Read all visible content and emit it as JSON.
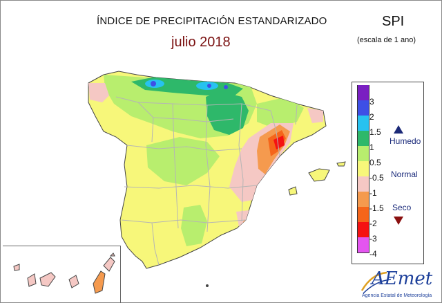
{
  "header": {
    "title": "ÍNDICE DE PRECIPITACIÓN ESTANDARIZADO",
    "subtitle": "julio 2018",
    "index": "SPI",
    "scale_note": "(escala de 1 ano)"
  },
  "legend": {
    "ticks": [
      "3",
      "2",
      "1.5",
      "1",
      "0.5",
      "-0.5",
      "-1",
      "-1.5",
      "-2",
      "-3",
      "-4"
    ],
    "colors": [
      "#7a1fc2",
      "#3e4fe6",
      "#27c2f0",
      "#2eb86a",
      "#b8ee6e",
      "#f7f77a",
      "#f5c8c4",
      "#f59a4e",
      "#f5651a",
      "#f51212",
      "#e455f0"
    ],
    "categories": {
      "wet": "Humedo",
      "normal": "Normal",
      "dry": "Seco"
    }
  },
  "logo": {
    "name": "AEmet",
    "tagline": "Agencia Estatal de Meteorología"
  }
}
